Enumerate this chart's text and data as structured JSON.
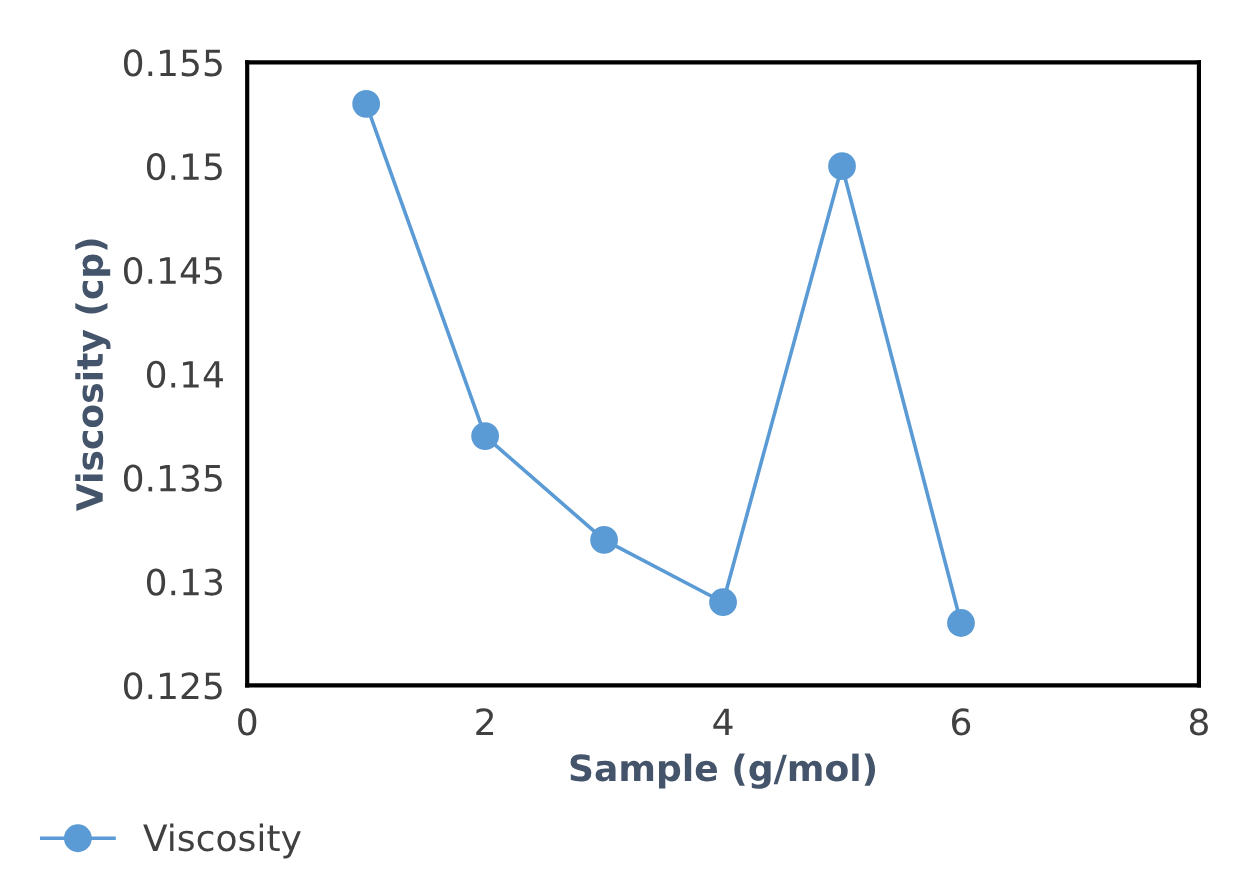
{
  "chart_data": {
    "type": "line",
    "xlabel": "Sample (g/mol)",
    "ylabel": "Viscosity (cp)",
    "x": [
      1,
      2,
      3,
      4,
      5,
      6
    ],
    "series": [
      {
        "name": "Viscosity",
        "color": "#5b9bd5",
        "values": [
          0.153,
          0.137,
          0.132,
          0.129,
          0.15,
          0.128
        ]
      }
    ],
    "xlim": [
      0,
      8
    ],
    "xticks": [
      0,
      2,
      4,
      6,
      8
    ],
    "ylim": [
      0.125,
      0.155
    ],
    "yticks": [
      0.125,
      0.13,
      0.135,
      0.14,
      0.145,
      0.15,
      0.155
    ],
    "grid": false,
    "legend": "bottom left",
    "marker": "circle",
    "line_style": "solid"
  }
}
